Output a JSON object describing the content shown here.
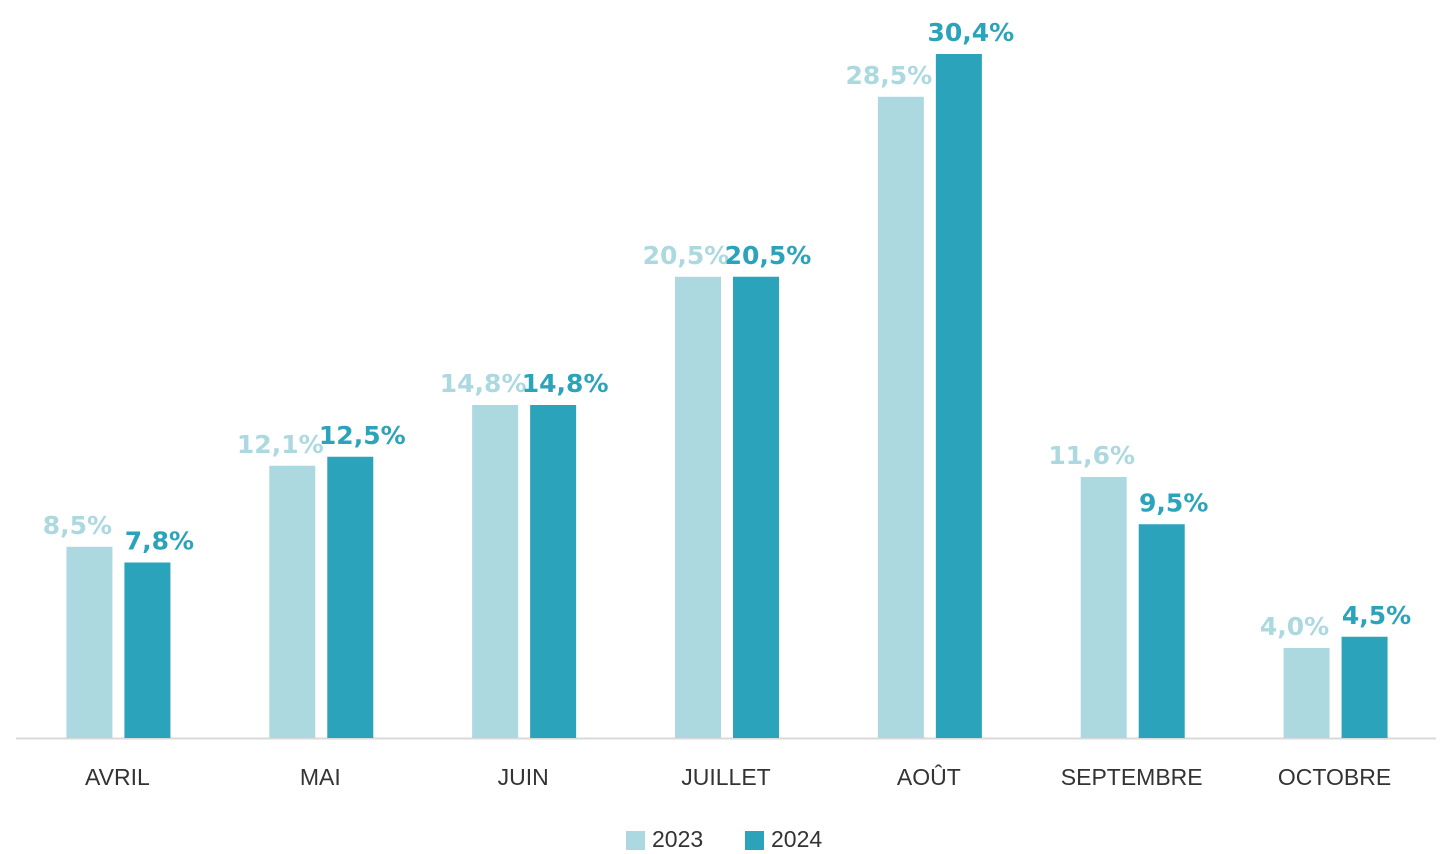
{
  "chart_data": {
    "type": "bar",
    "categories": [
      "AVRIL",
      "MAI",
      "JUIN",
      "JUILLET",
      "AOÛT",
      "SEPTEMBRE",
      "OCTOBRE"
    ],
    "series": [
      {
        "name": "2023",
        "color": "#acd9e0",
        "values": [
          8.5,
          12.1,
          14.8,
          20.5,
          28.5,
          11.6,
          4.0
        ],
        "value_labels": [
          "8,5%",
          "12,1%",
          "14,8%",
          "20,5%",
          "28,5%",
          "11,6%",
          "4,0%"
        ]
      },
      {
        "name": "2024",
        "color": "#2ba3ba",
        "values": [
          7.8,
          12.5,
          14.8,
          20.5,
          30.4,
          9.5,
          4.5
        ],
        "value_labels": [
          "7,8%",
          "12,5%",
          "14,8%",
          "20,5%",
          "30,4%",
          "9,5%",
          "4,5%"
        ]
      }
    ]
  }
}
